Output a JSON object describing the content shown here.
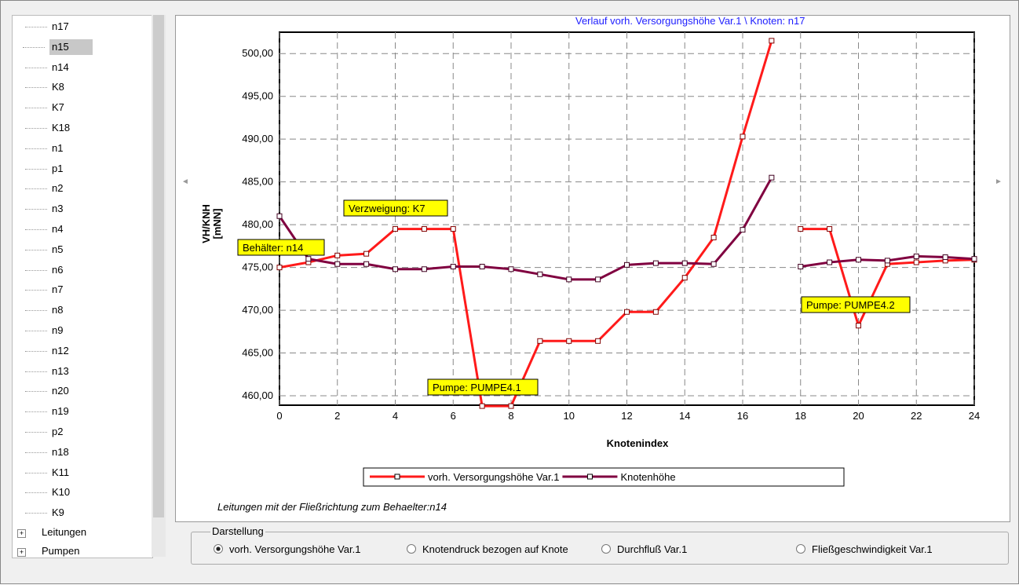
{
  "tree": {
    "items": [
      "n17",
      "n15",
      "n14",
      "K8",
      "K7",
      "K18",
      "n1",
      "p1",
      "n2",
      "n3",
      "n4",
      "n5",
      "n6",
      "n7",
      "n8",
      "n9",
      "n12",
      "n13",
      "n20",
      "n19",
      "p2",
      "n18",
      "K11",
      "K10",
      "K9"
    ],
    "selected": "n15",
    "groups": [
      "Leitungen",
      "Pumpen"
    ]
  },
  "chart_data": {
    "type": "line",
    "title": "Verlauf vorh. Versorgungshöhe Var.1 \\ Knoten: n17",
    "x_label": "Knotenindex",
    "y_label": [
      "VH/KNH",
      "[mNN]"
    ],
    "x": [
      0,
      1,
      2,
      3,
      4,
      5,
      6,
      7,
      8,
      9,
      10,
      11,
      12,
      13,
      14,
      15,
      16,
      17,
      18,
      19,
      20,
      21,
      22,
      23,
      24
    ],
    "line_breaks": [
      18
    ],
    "series": [
      {
        "name": "vorh. Versorgungshöhe Var.1",
        "color": "#ff1a1a",
        "values": [
          475.0,
          475.6,
          476.4,
          476.6,
          479.5,
          479.5,
          479.5,
          458.8,
          458.8,
          466.4,
          466.4,
          466.4,
          469.8,
          469.8,
          473.8,
          478.5,
          490.3,
          501.5,
          479.5,
          479.5,
          468.2,
          475.4,
          475.6,
          475.8,
          475.9
        ]
      },
      {
        "name": "Knotenhöhe",
        "color": "#800040",
        "values": [
          481.0,
          476.0,
          475.4,
          475.4,
          474.8,
          474.8,
          475.1,
          475.1,
          474.8,
          474.2,
          473.6,
          473.6,
          475.3,
          475.5,
          475.5,
          475.4,
          479.4,
          485.5,
          475.1,
          475.6,
          475.9,
          475.8,
          476.3,
          476.2,
          476.0
        ]
      }
    ],
    "xlim": [
      0,
      24
    ],
    "xticks": [
      0,
      2,
      4,
      6,
      8,
      10,
      12,
      14,
      16,
      18,
      20,
      22,
      24
    ],
    "ylim": [
      458.9,
      502.5
    ],
    "yticks": [
      {
        "value": 460,
        "label": "460,00"
      },
      {
        "value": 465,
        "label": "465,00"
      },
      {
        "value": 470,
        "label": "470,00"
      },
      {
        "value": 475,
        "label": "475,00"
      },
      {
        "value": 480,
        "label": "480,00"
      },
      {
        "value": 485,
        "label": "485,00"
      },
      {
        "value": 490,
        "label": "490,00"
      },
      {
        "value": 495,
        "label": "495,00"
      },
      {
        "value": 500,
        "label": "500,00"
      }
    ],
    "grid": true,
    "annotations": [
      "Verzweigung: K7",
      "Behälter: n14",
      "Pumpe: PUMPE4.1",
      "Pumpe: PUMPE4.2"
    ]
  },
  "note": "Leitungen mit der Fließrichtung zum Behaelter:n14",
  "display": {
    "title": "Darstellung",
    "options": [
      "vorh. Versorgungshöhe Var.1",
      "Knotendruck bezogen auf Knote",
      "Durchfluß Var.1",
      "Fließgeschwindigkeit Var.1"
    ],
    "selected": 0
  }
}
